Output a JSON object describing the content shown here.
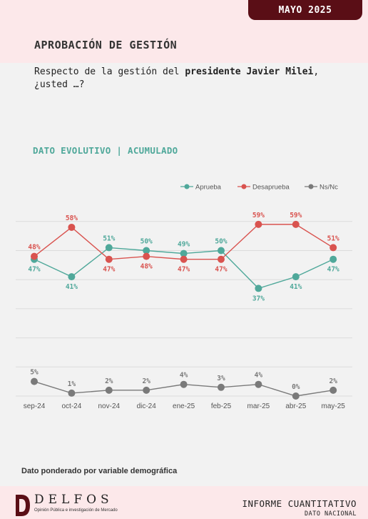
{
  "header": {
    "date_badge": "MAYO 2025",
    "title": "APROBACIÓN DE GESTIÓN",
    "question_prefix": "Respecto de la gestión del ",
    "question_bold": "presidente Javier Milei",
    "question_suffix": ", ¿usted …?"
  },
  "section_label": "DATO EVOLUTIVO | ACUMULADO",
  "colors": {
    "aprueba": "#4fa89a",
    "desaprueba": "#d9534f",
    "nsnc": "#7a7a7a"
  },
  "chart_data": {
    "type": "line",
    "title": "",
    "xlabel": "",
    "ylabel": "",
    "categories": [
      "sep-24",
      "oct-24",
      "nov-24",
      "dic-24",
      "ene-25",
      "feb-25",
      "mar-25",
      "abr-25",
      "may-25"
    ],
    "series": [
      {
        "name": "Aprueba",
        "values": [
          47,
          41,
          51,
          50,
          49,
          50,
          37,
          41,
          47
        ]
      },
      {
        "name": "Desaprueba",
        "values": [
          48,
          58,
          47,
          48,
          47,
          47,
          59,
          59,
          51
        ]
      },
      {
        "name": "Ns/Nc",
        "values": [
          5,
          1,
          2,
          2,
          4,
          3,
          4,
          0,
          2
        ]
      }
    ],
    "ylim": [
      0,
      65
    ],
    "value_suffix": "%",
    "grid": true,
    "legend": "top-right"
  },
  "footnote": "Dato ponderado por variable demográfica",
  "footer": {
    "brand": "DELFOS",
    "tagline": "Opinión Pública e investigación de Mercado",
    "report_type": "INFORME CUANTITATIVO",
    "report_scope": "DATO NACIONAL"
  }
}
